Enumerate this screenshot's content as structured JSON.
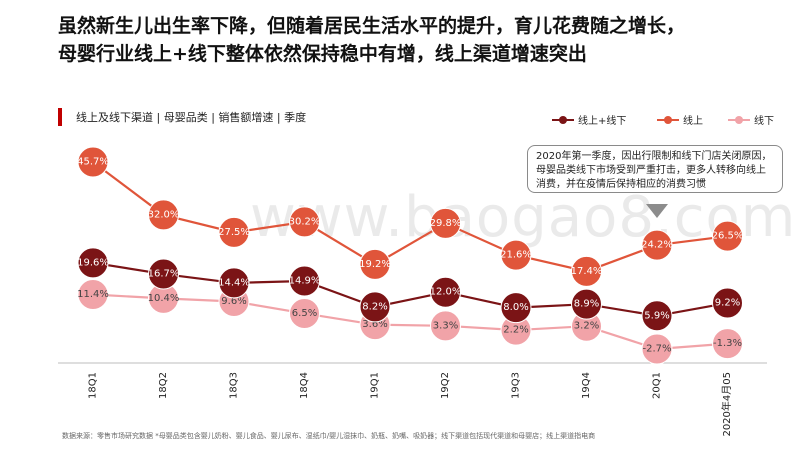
{
  "headline": {
    "line1": "虽然新生儿出生率下降，但随着居民生活水平的提升，育儿花费随之增长，",
    "line2": "母婴行业线上+线下整体依然保持稳中有增，线上渠道增速突出"
  },
  "subtitle": "线上及线下渠道 | 母婴品类 | 销售额增速 | 季度",
  "callout": "2020年第一季度，因出行限制和线下门店关闭原因，母婴品类线下市场受到严重打击，更多人转移向线上消费，并在疫情后保持相应的消费习惯",
  "footnote": "数据来源：零售市场研究数据 *母婴品类包含婴儿奶粉、婴儿食品、婴儿尿布、湿纸巾/婴儿湿抹巾、奶瓶、奶嘴、吸奶器；线下渠道包括现代渠道和母婴店；线上渠道指电商",
  "watermark": "www.baogao8.com",
  "colors": {
    "total": "#7b1416",
    "online": "#e0553a",
    "offline": "#f1a3a8",
    "accent": "#c00000"
  },
  "chart_data": {
    "type": "line",
    "title": "线上及线下渠道 | 母婴品类 | 销售额增速 | 季度",
    "categories": [
      "18Q1",
      "18Q2",
      "18Q3",
      "18Q4",
      "19Q1",
      "19Q2",
      "19Q3",
      "19Q4",
      "20Q1",
      "2020年4月05"
    ],
    "series": [
      {
        "name": "线上+线下",
        "key": "total",
        "values": [
          19.6,
          16.7,
          14.4,
          14.9,
          8.2,
          12.0,
          8.0,
          8.9,
          5.9,
          9.2
        ],
        "labels": [
          "19.6%",
          "16.7%",
          "14.4%",
          "14.9%",
          "8.2%",
          "12.0%",
          "8.0%",
          "8.9%",
          "5.9%",
          "9.2%"
        ]
      },
      {
        "name": "线上",
        "key": "online",
        "values": [
          45.7,
          32.0,
          27.5,
          30.2,
          19.2,
          29.8,
          21.6,
          17.4,
          24.2,
          26.5
        ],
        "labels": [
          "45.7%",
          "32.0%",
          "27.5%",
          "30.2%",
          "19.2%",
          "29.8%",
          "21.6%",
          "17.4%",
          "24.2%",
          "26.5%"
        ]
      },
      {
        "name": "线下",
        "key": "offline",
        "values": [
          11.4,
          10.4,
          9.6,
          6.5,
          3.6,
          3.3,
          2.2,
          3.2,
          -2.7,
          -1.3
        ],
        "labels": [
          "11.4%",
          "10.4%",
          "9.6%",
          "6.5%",
          "3.6%",
          "3.3%",
          "2.2%",
          "3.2%",
          "-2.7%",
          "-1.3%"
        ]
      }
    ],
    "xlabel": "",
    "ylabel": "",
    "grid": false,
    "legend": "top-right"
  }
}
